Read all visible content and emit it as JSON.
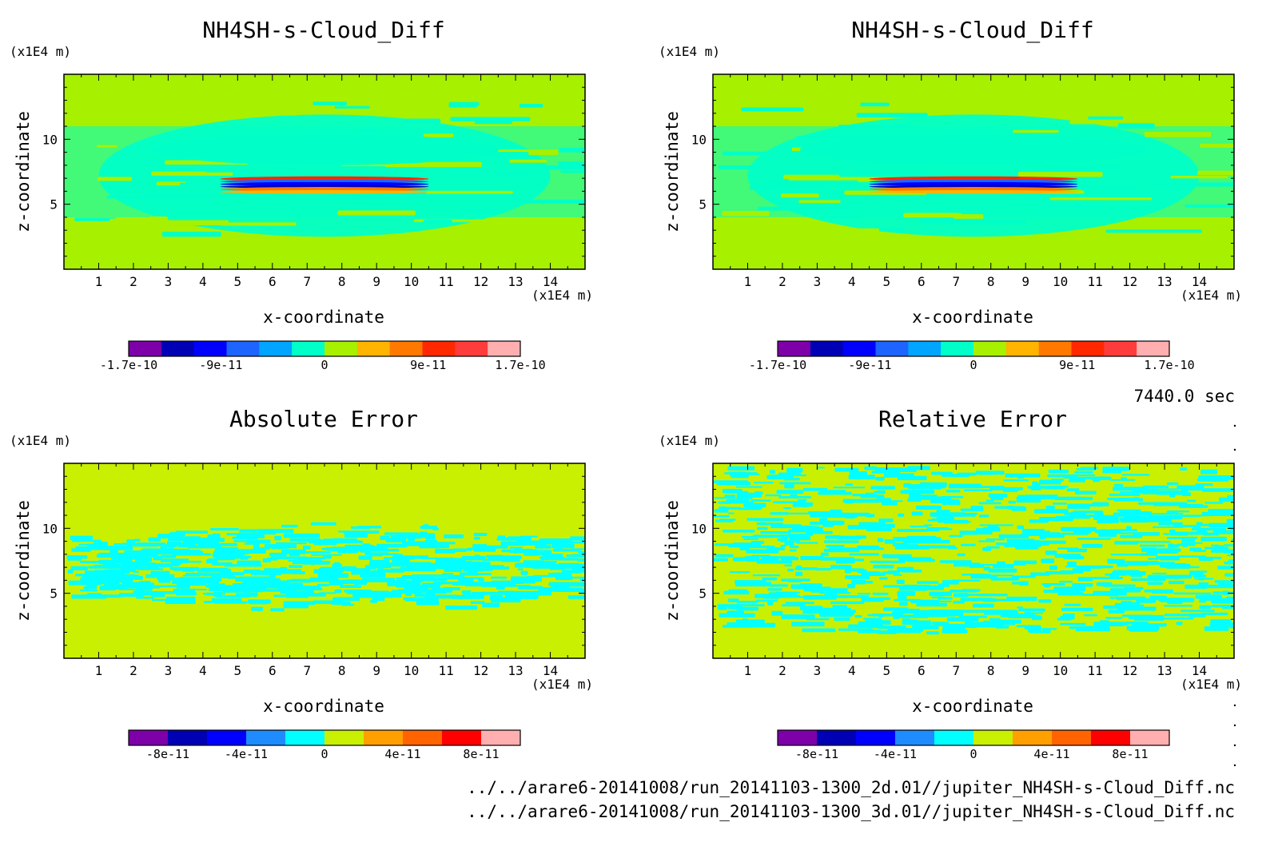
{
  "time_label": "7440.0 sec",
  "footer": {
    "file1": "../../arare6-20141008/run_20141103-1300_2d.01//jupiter_NH4SH-s-Cloud_Diff.nc",
    "file2": "../../arare6-20141008/run_20141103-1300_3d.01//jupiter_NH4SH-s-Cloud_Diff.nc"
  },
  "chart_data": [
    {
      "type": "heatmap",
      "title": "NH4SH-s-Cloud_Diff",
      "xlabel": "x-coordinate",
      "ylabel": "z-coordinate",
      "x_unit": "(x1E4 m)",
      "y_unit": "(x1E4 m)",
      "xlim": [
        0,
        15
      ],
      "ylim": [
        0,
        15
      ],
      "x_ticks": [
        "1",
        "2",
        "3",
        "4",
        "5",
        "6",
        "7",
        "8",
        "9",
        "10",
        "11",
        "12",
        "13",
        "14"
      ],
      "y_ticks": [
        "5",
        "10"
      ],
      "background_color": "#a6f000",
      "pattern": "layered",
      "colorbar": {
        "range": [
          -1.7e-10,
          1.7e-10
        ],
        "tick_labels": [
          "-1.7e-10",
          "-9e-11",
          "0",
          "9e-11",
          "1.7e-10"
        ],
        "colors": [
          "#7d00a8",
          "#0000b4",
          "#0000ff",
          "#1e64ff",
          "#00a5ff",
          "#00ffc8",
          "#a6f000",
          "#ffb400",
          "#ff7800",
          "#ff2800",
          "#ff3c3c",
          "#ffafaf"
        ]
      }
    },
    {
      "type": "heatmap",
      "title": "NH4SH-s-Cloud_Diff",
      "xlabel": "x-coordinate",
      "ylabel": "z-coordinate",
      "x_unit": "(x1E4 m)",
      "y_unit": "(x1E4 m)",
      "xlim": [
        0,
        15
      ],
      "ylim": [
        0,
        15
      ],
      "x_ticks": [
        "1",
        "2",
        "3",
        "4",
        "5",
        "6",
        "7",
        "8",
        "9",
        "10",
        "11",
        "12",
        "13",
        "14"
      ],
      "y_ticks": [
        "5",
        "10"
      ],
      "background_color": "#a6f000",
      "pattern": "layered",
      "colorbar": {
        "range": [
          -1.7e-10,
          1.7e-10
        ],
        "tick_labels": [
          "-1.7e-10",
          "-9e-11",
          "0",
          "9e-11",
          "1.7e-10"
        ],
        "colors": [
          "#7d00a8",
          "#0000b4",
          "#0000ff",
          "#1e64ff",
          "#00a5ff",
          "#00ffc8",
          "#a6f000",
          "#ffb400",
          "#ff7800",
          "#ff2800",
          "#ff3c3c",
          "#ffafaf"
        ]
      }
    },
    {
      "type": "heatmap",
      "title": "Absolute Error",
      "xlabel": "x-coordinate",
      "ylabel": "z-coordinate",
      "x_unit": "(x1E4 m)",
      "y_unit": "(x1E4 m)",
      "xlim": [
        0,
        15
      ],
      "ylim": [
        0,
        15
      ],
      "x_ticks": [
        "1",
        "2",
        "3",
        "4",
        "5",
        "6",
        "7",
        "8",
        "9",
        "10",
        "11",
        "12",
        "13",
        "14"
      ],
      "y_ticks": [
        "5",
        "10"
      ],
      "background_color": "#c8f000",
      "pattern": "noise-abs",
      "colorbar": {
        "range": [
          -1e-10,
          1e-10
        ],
        "tick_labels": [
          "-8e-11",
          "-4e-11",
          "0",
          "4e-11",
          "8e-11"
        ],
        "colors": [
          "#7d00a8",
          "#0000b4",
          "#0000ff",
          "#1e8cff",
          "#00ffff",
          "#c8f000",
          "#ffa000",
          "#ff6400",
          "#ff0000",
          "#ffafaf"
        ]
      }
    },
    {
      "type": "heatmap",
      "title": "Relative Error",
      "xlabel": "x-coordinate",
      "ylabel": "z-coordinate",
      "x_unit": "(x1E4 m)",
      "y_unit": "(x1E4 m)",
      "xlim": [
        0,
        15
      ],
      "ylim": [
        0,
        15
      ],
      "x_ticks": [
        "1",
        "2",
        "3",
        "4",
        "5",
        "6",
        "7",
        "8",
        "9",
        "10",
        "11",
        "12",
        "13",
        "14"
      ],
      "y_ticks": [
        "5",
        "10"
      ],
      "background_color": "#c8f000",
      "pattern": "noise-rel",
      "colorbar": {
        "range": [
          -1e-10,
          1e-10
        ],
        "tick_labels": [
          "-8e-11",
          "-4e-11",
          "0",
          "4e-11",
          "8e-11"
        ],
        "colors": [
          "#7d00a8",
          "#0000b4",
          "#0000ff",
          "#1e8cff",
          "#00ffff",
          "#c8f000",
          "#ffa000",
          "#ff6400",
          "#ff0000",
          "#ffafaf"
        ]
      }
    }
  ]
}
